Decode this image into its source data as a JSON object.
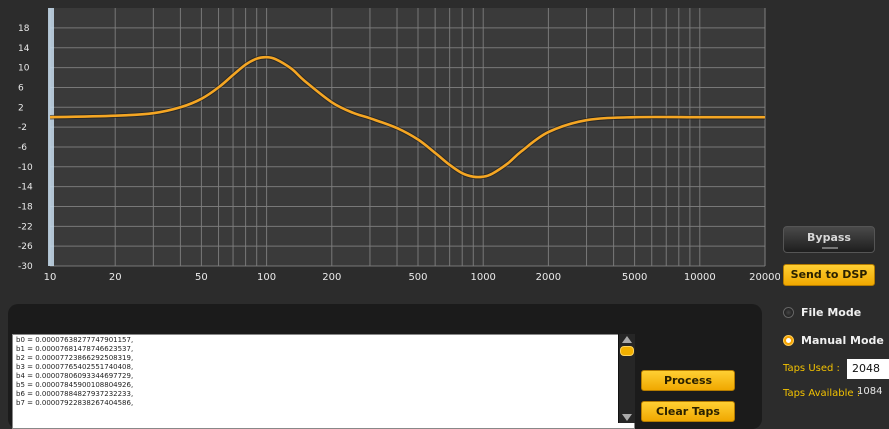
{
  "chart_data": {
    "type": "line",
    "x_scale": "log",
    "xlim": [
      10,
      20000
    ],
    "ylim": [
      -30,
      20
    ],
    "yticks": [
      18,
      14,
      10,
      6,
      2,
      -2,
      -6,
      -10,
      -14,
      -18,
      -22,
      -26,
      -30
    ],
    "xticks": [
      10,
      20,
      50,
      100,
      200,
      500,
      1000,
      2000,
      5000,
      10000,
      20000
    ],
    "xtick_labels": [
      "10",
      "20",
      "50",
      "100",
      "200",
      "500",
      "1000",
      "2000",
      "5000",
      "10000",
      "20000"
    ],
    "grid": true,
    "series": [
      {
        "color": "#f5a623",
        "x": [
          10,
          20,
          30,
          40,
          50,
          60,
          70,
          80,
          90,
          100,
          110,
          130,
          150,
          200,
          250,
          300,
          400,
          500,
          600,
          700,
          800,
          900,
          1000,
          1100,
          1300,
          1500,
          2000,
          3000,
          5000,
          10000,
          20000
        ],
        "y": [
          0,
          0.3,
          0.8,
          2,
          3.7,
          6,
          8.5,
          10.6,
          11.8,
          12.1,
          11.7,
          9.8,
          7.3,
          3,
          0.9,
          -0.2,
          -2.2,
          -4.5,
          -7.2,
          -9.6,
          -11.3,
          -12,
          -12,
          -11.4,
          -9.3,
          -6.9,
          -3,
          -0.6,
          0,
          0,
          0
        ]
      }
    ]
  },
  "controls": {
    "bypass_label": "Bypass",
    "send_label": "Send to DSP",
    "file_mode_label": "File Mode",
    "manual_mode_label": "Manual Mode",
    "taps_used_label": "Taps Used :",
    "taps_used_value": "2048",
    "taps_available_label": "Taps Available :",
    "taps_available_value": "1084",
    "process_label": "Process",
    "clear_label": "Clear Taps"
  },
  "coefficients": [
    "b0 = 0.00007638277747901157,",
    "b1 = 0.00007681478746623537,",
    "b2 = 0.00007723866292508319,",
    "b3 = 0.00007765402551740408,",
    "b4 = 0.00007806093344697729,",
    "b5 = 0.00007845900108804926,",
    "b6 = 0.00007884827937232233,",
    "b7 = 0.00007922838267404586,"
  ],
  "colors": {
    "accent": "#f5a623",
    "grid": "#7f7f7f",
    "plot_bg": "#3a3a3a"
  }
}
